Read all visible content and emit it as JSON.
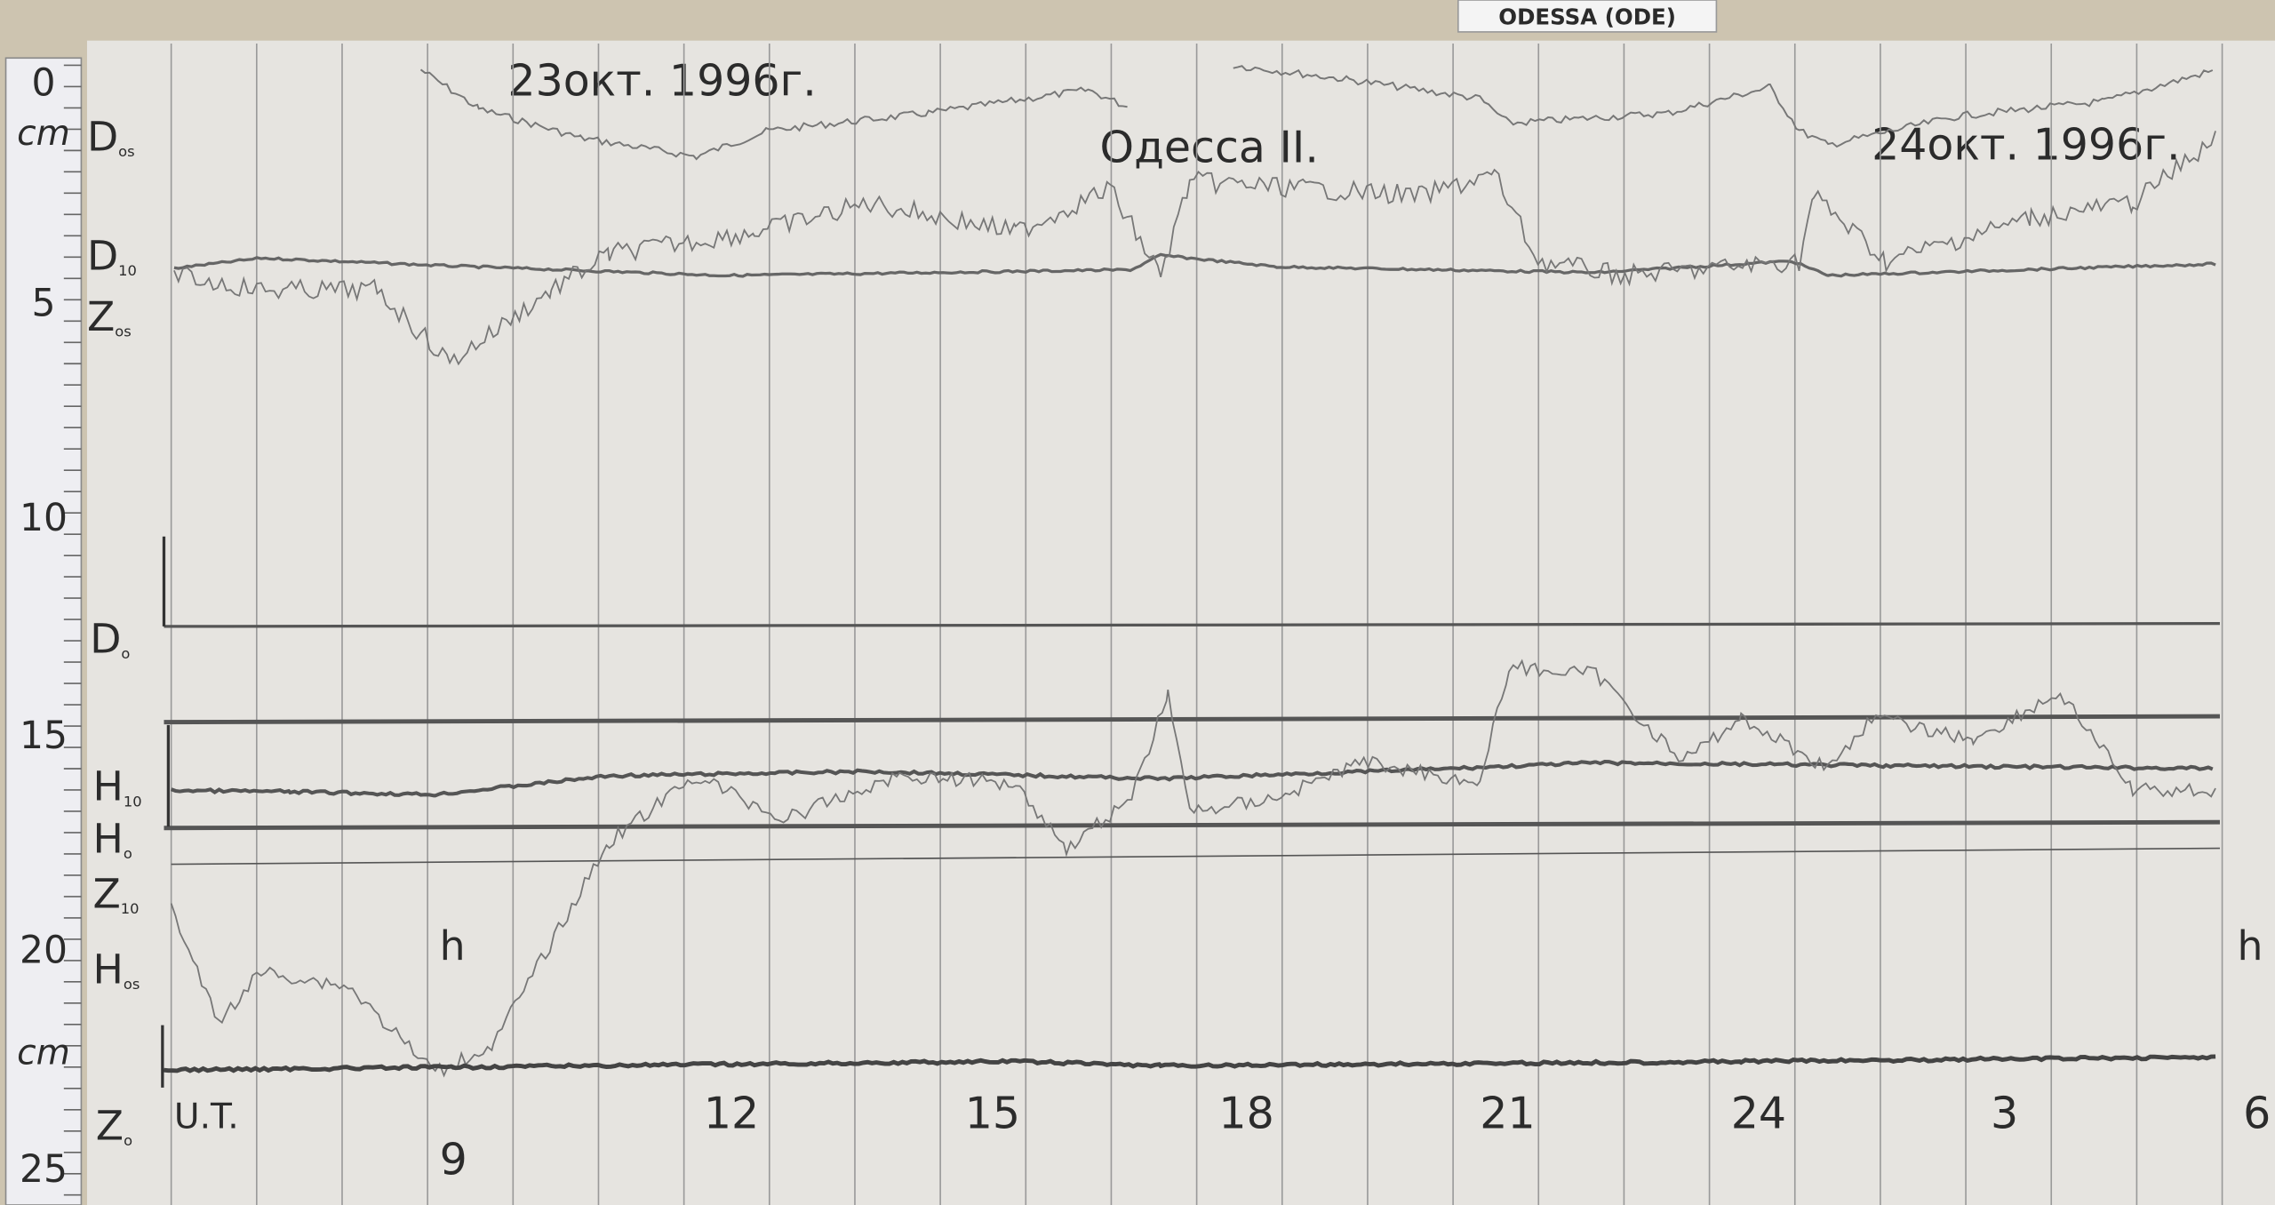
{
  "station_tag": "ODESSA (ODE)",
  "header": {
    "date_left": "23окт. 1996г.",
    "station": "Одесса II.",
    "date_right": "24окт. 1996г."
  },
  "ruler": {
    "labels": [
      "0",
      "cm",
      "5",
      "10",
      "15",
      "20",
      "cm",
      "25"
    ]
  },
  "trace_labels": [
    {
      "main": "D",
      "sub": "os"
    },
    {
      "main": "D",
      "sub": "10"
    },
    {
      "main": "Z",
      "sub": "os"
    },
    {
      "main": "D",
      "sub": "o"
    },
    {
      "main": "H",
      "sub": "10"
    },
    {
      "main": "H",
      "sub": "o"
    },
    {
      "main": "Z",
      "sub": "10"
    },
    {
      "main": "H",
      "sub": "os"
    },
    {
      "main": "Z",
      "sub": "o"
    }
  ],
  "time_axis": {
    "labels": [
      "U.T.",
      "9",
      "12",
      "15",
      "18",
      "21",
      "24",
      "3",
      "6"
    ],
    "unit": [
      "h",
      "h"
    ]
  }
}
